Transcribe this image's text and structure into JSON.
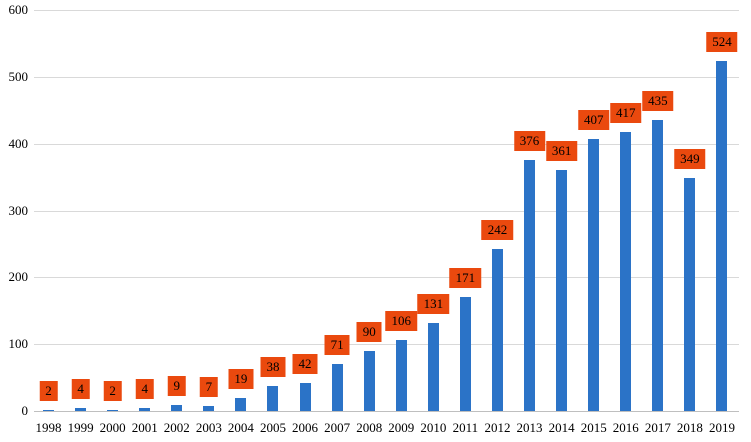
{
  "chart_data": {
    "type": "bar",
    "title": "",
    "xlabel": "",
    "ylabel": "",
    "categories": [
      "1998",
      "1999",
      "2000",
      "2001",
      "2002",
      "2003",
      "2004",
      "2005",
      "2006",
      "2007",
      "2008",
      "2009",
      "2010",
      "2011",
      "2012",
      "2013",
      "2014",
      "2015",
      "2016",
      "2017",
      "2018",
      "2019"
    ],
    "values": [
      2,
      4,
      2,
      4,
      9,
      7,
      19,
      38,
      42,
      71,
      90,
      106,
      131,
      171,
      242,
      376,
      361,
      407,
      417,
      435,
      349,
      524
    ],
    "yticks": [
      0,
      100,
      200,
      300,
      400,
      500,
      600
    ],
    "ylim": [
      0,
      600
    ],
    "grid": true,
    "legend": false,
    "data_labels": true,
    "colors": {
      "bar": "#2B73C7",
      "data_label_bg": "#EA490E",
      "data_label_text": "#000000",
      "gridline": "#D9D9D9",
      "axis_line": "#BFBFBF",
      "tick_text": "#000000",
      "background": "#FFFFFF"
    }
  }
}
